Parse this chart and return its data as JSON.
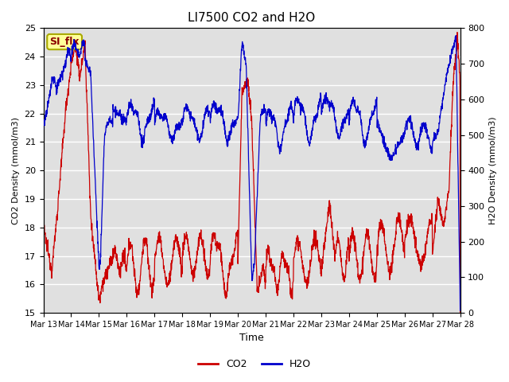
{
  "title": "LI7500 CO2 and H2O",
  "xlabel": "Time",
  "ylabel_left": "CO2 Density (mmol/m3)",
  "ylabel_right": "H2O Density (mmol/m3)",
  "ylim_left": [
    15.0,
    25.0
  ],
  "ylim_right": [
    0,
    800
  ],
  "yticks_left": [
    15.0,
    16.0,
    17.0,
    18.0,
    19.0,
    20.0,
    21.0,
    22.0,
    23.0,
    24.0,
    25.0
  ],
  "yticks_right": [
    0,
    100,
    200,
    300,
    400,
    500,
    600,
    700,
    800
  ],
  "xtick_labels": [
    "Mar 13",
    "Mar 14",
    "Mar 15",
    "Mar 16",
    "Mar 17",
    "Mar 18",
    "Mar 19",
    "Mar 20",
    "Mar 21",
    "Mar 22",
    "Mar 23",
    "Mar 24",
    "Mar 25",
    "Mar 26",
    "Mar 27",
    "Mar 28"
  ],
  "co2_color": "#cc0000",
  "h2o_color": "#0000cc",
  "plot_bg_color": "#e0e0e0",
  "annotation_text": "SI_flx",
  "annotation_bg": "#ffff99",
  "annotation_border": "#aaaa00",
  "legend_co2": "CO2",
  "legend_h2o": "H2O",
  "grid_color": "#f0f0f0",
  "linewidth": 0.9
}
